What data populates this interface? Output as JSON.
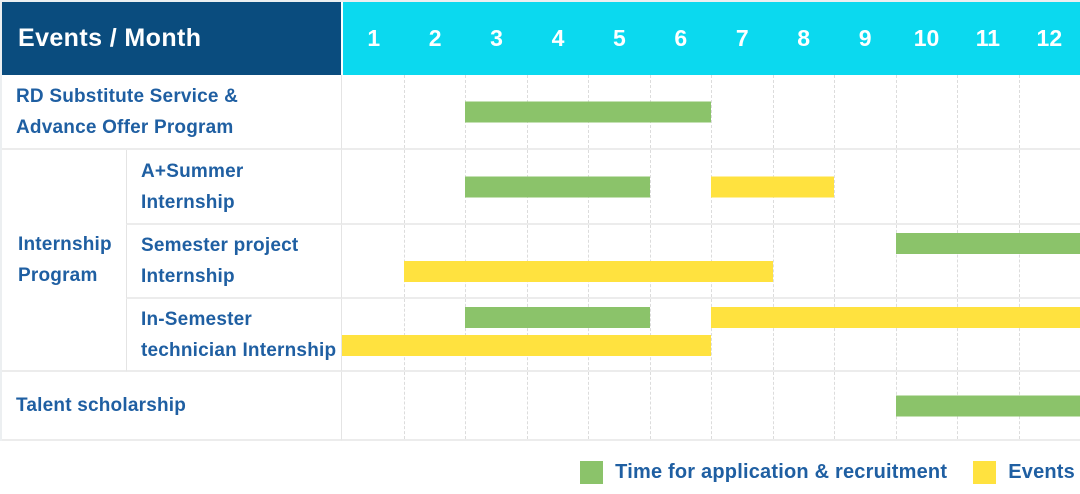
{
  "header": {
    "title": "Events / Month",
    "months": [
      "1",
      "2",
      "3",
      "4",
      "5",
      "6",
      "7",
      "8",
      "9",
      "10",
      "11",
      "12"
    ]
  },
  "colors": {
    "navy": "#0a4c7e",
    "cyan": "#0bd9ef",
    "green": "#8bc36a",
    "yellow": "#ffe23f",
    "text_blue": "#1f5fa2"
  },
  "chart_data": {
    "type": "gantt",
    "title": "Events / Month",
    "x_axis": {
      "label": "Month",
      "range": [
        1,
        12
      ]
    },
    "rows": [
      {
        "label": "RD Substitute Service &\nAdvance Offer Program",
        "group": null,
        "bars": [
          {
            "series": "Time for application & recruitment",
            "color": "green",
            "start_month": 3,
            "end_month": 6,
            "line": "single"
          }
        ]
      },
      {
        "label": "A+Summer\nInternship",
        "group": "Internship Program",
        "bars": [
          {
            "series": "Time for application & recruitment",
            "color": "green",
            "start_month": 3,
            "end_month": 5,
            "line": "single"
          },
          {
            "series": "Events",
            "color": "yellow",
            "start_month": 7,
            "end_month": 8,
            "line": "single"
          }
        ]
      },
      {
        "label": "Semester project\nInternship",
        "group": "Internship Program",
        "bars": [
          {
            "series": "Time for application & recruitment",
            "color": "green",
            "start_month": 10,
            "end_month": 12,
            "line": "upper"
          },
          {
            "series": "Events",
            "color": "yellow",
            "start_month": 2,
            "end_month": 7,
            "line": "lower"
          }
        ]
      },
      {
        "label": "In-Semester\ntechnician Internship",
        "group": "Internship Program",
        "bars": [
          {
            "series": "Time for application & recruitment",
            "color": "green",
            "start_month": 3,
            "end_month": 5,
            "line": "upper"
          },
          {
            "series": "Events",
            "color": "yellow",
            "start_month": 7,
            "end_month": 12,
            "line": "upper"
          },
          {
            "series": "Events",
            "color": "yellow",
            "start_month": 1,
            "end_month": 6,
            "line": "lower"
          }
        ]
      },
      {
        "label": "Talent scholarship",
        "group": null,
        "bars": [
          {
            "series": "Time for application & recruitment",
            "color": "green",
            "start_month": 10,
            "end_month": 12,
            "line": "single"
          }
        ]
      }
    ],
    "group_label": "Internship\nProgram",
    "legend": [
      {
        "label": "Time for application & recruitment",
        "color": "green"
      },
      {
        "label": "Events",
        "color": "yellow"
      }
    ],
    "legend_position": "bottom-right"
  }
}
